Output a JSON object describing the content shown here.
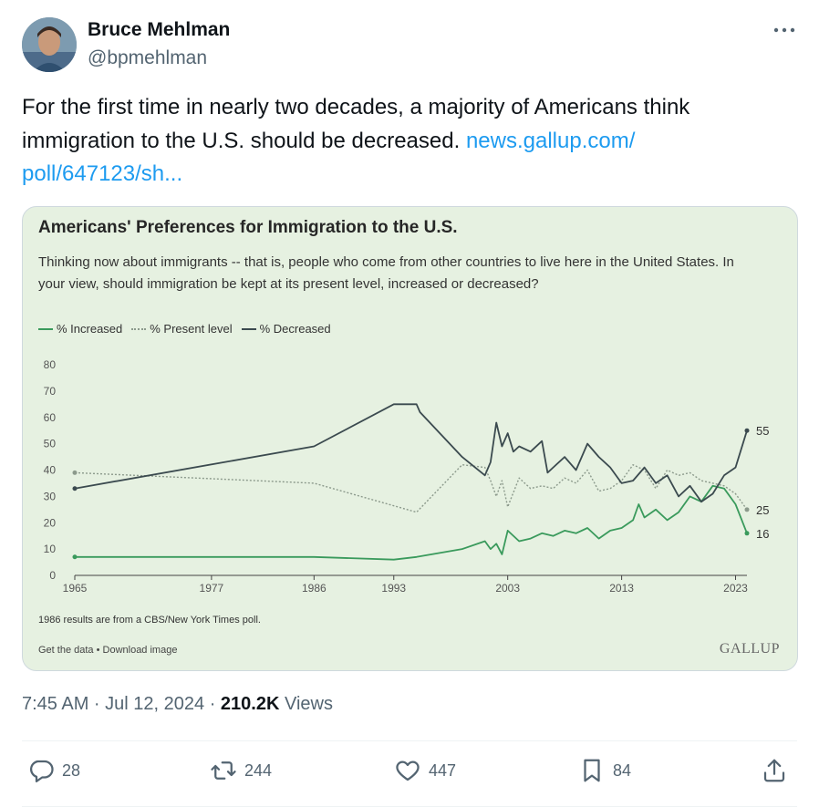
{
  "author": {
    "name": "Bruce Mehlman",
    "handle": "@bpmehlman"
  },
  "tweet": {
    "text": "For the first time in nearly two decades, a majority of Americans think immigration to the U.S. should be decreased.",
    "link_text": "news.gallup.com/\npoll/647123/sh..."
  },
  "card": {
    "title": "Americans' Preferences for Immigration to the U.S.",
    "subtitle": "Thinking now about immigrants -- that is, people who come from other countries to live here in the United States. In your view, should immigration be kept at its present level, increased or decreased?",
    "footnote": "1986 results are from a CBS/New York Times poll.",
    "get_data": "Get the data • Download image",
    "brand": "GALLUP"
  },
  "chart_data": {
    "type": "line",
    "xlim": [
      1965,
      2024
    ],
    "ylim": [
      0,
      80
    ],
    "yticks": [
      0,
      10,
      20,
      30,
      40,
      50,
      60,
      70,
      80
    ],
    "xticks": [
      1965,
      1977,
      1986,
      1993,
      2003,
      2013,
      2023
    ],
    "colors": {
      "increased": "#3a9a5c",
      "present": "#8c9a8c",
      "decreased": "#3b4a4f"
    },
    "series": [
      {
        "name": "% Increased",
        "key": "increased",
        "x": [
          1965,
          1986,
          1993,
          1995,
          1999,
          2001,
          2001.5,
          2002,
          2002.5,
          2003,
          2004,
          2005,
          2006,
          2007,
          2008,
          2009,
          2010,
          2011,
          2012,
          2013,
          2014,
          2014.5,
          2015,
          2016,
          2017,
          2018,
          2019,
          2020,
          2021,
          2022,
          2023,
          2024
        ],
        "y": [
          7,
          7,
          6,
          7,
          10,
          13,
          10,
          12,
          8,
          17,
          13,
          14,
          16,
          15,
          17,
          16,
          18,
          14,
          17,
          18,
          21,
          27,
          22,
          25,
          21,
          24,
          30,
          28,
          34,
          33,
          27,
          16
        ],
        "end_label": "16"
      },
      {
        "name": "% Present level",
        "key": "present",
        "x": [
          1965,
          1986,
          1995,
          1999,
          2001,
          2001.5,
          2002,
          2002.5,
          2003,
          2004,
          2005,
          2006,
          2007,
          2008,
          2009,
          2010,
          2011,
          2012,
          2013,
          2014,
          2015,
          2016,
          2017,
          2018,
          2019,
          2020,
          2021,
          2022,
          2023,
          2024
        ],
        "y": [
          39,
          35,
          24,
          42,
          41,
          36,
          30,
          36,
          26,
          37,
          33,
          34,
          33,
          37,
          35,
          40,
          32,
          33,
          36,
          42,
          40,
          33,
          40,
          38,
          39,
          36,
          35,
          34,
          31,
          25
        ],
        "end_label": "25"
      },
      {
        "name": "% Decreased",
        "key": "decreased",
        "x": [
          1965,
          1986,
          1993,
          1995,
          1995.3,
          1999,
          2001,
          2001.5,
          2002,
          2002.5,
          2003,
          2003.5,
          2004,
          2005,
          2006,
          2006.5,
          2007,
          2008,
          2009,
          2010,
          2011,
          2012,
          2013,
          2014,
          2015,
          2016,
          2017,
          2018,
          2019,
          2020,
          2021,
          2022,
          2023,
          2024
        ],
        "y": [
          33,
          49,
          65,
          65,
          62,
          45,
          38,
          43,
          58,
          49,
          54,
          47,
          49,
          47,
          51,
          39,
          41,
          45,
          40,
          50,
          45,
          41,
          35,
          36,
          41,
          35,
          38,
          30,
          34,
          28,
          31,
          38,
          41,
          55
        ],
        "end_label": "55"
      }
    ]
  },
  "timestamp": "7:45 AM · Jul 12, 2024",
  "views": {
    "count": "210.2K",
    "label": "Views"
  },
  "actions": {
    "replies": "28",
    "reposts": "244",
    "likes": "447",
    "bookmarks": "84"
  }
}
